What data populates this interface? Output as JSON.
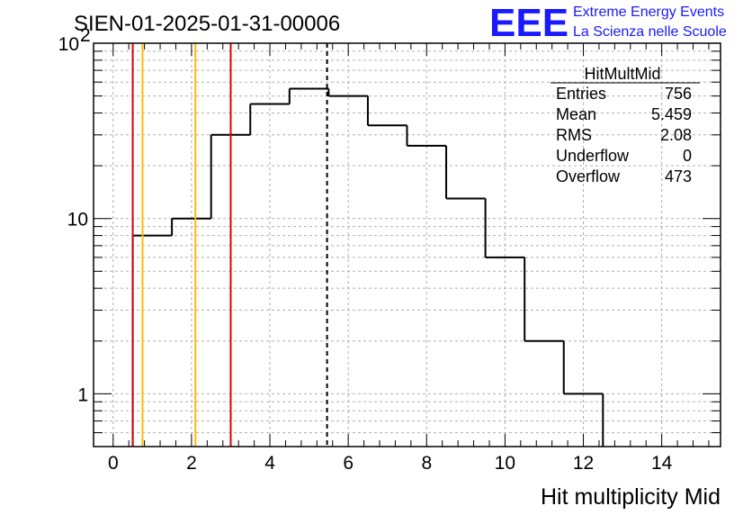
{
  "title": "SIEN-01-2025-01-31-00006",
  "logo": {
    "mark": "EEE",
    "line1": "Extreme Energy Events",
    "line2": "La Scienza nelle Scuole",
    "color": "#1a1aff"
  },
  "stats": {
    "name": "HitMultMid",
    "rows": [
      {
        "label": "Entries",
        "value": "756"
      },
      {
        "label": "Mean",
        "value": "5.459"
      },
      {
        "label": "RMS",
        "value": "2.08"
      },
      {
        "label": "Underflow",
        "value": "0"
      },
      {
        "label": "Overflow",
        "value": "473"
      }
    ]
  },
  "chart_data": {
    "type": "bar",
    "style": "step-histogram",
    "xlabel": "Hit multiplicity Mid",
    "ylabel": "",
    "xlim": [
      -0.5,
      15.5
    ],
    "ylim": [
      0.5,
      100
    ],
    "yscale": "log",
    "grid": true,
    "bin_edges": [
      0.5,
      1.5,
      2.5,
      3.5,
      4.5,
      5.5,
      6.5,
      7.5,
      8.5,
      9.5,
      10.5,
      11.5,
      12.5
    ],
    "values": [
      8,
      10,
      30,
      45,
      55,
      50,
      34,
      26,
      13,
      6,
      2,
      1
    ],
    "x_ticks": [
      0,
      2,
      4,
      6,
      8,
      10,
      12,
      14
    ],
    "y_ticks": [
      {
        "value": 1,
        "label": "1"
      },
      {
        "value": 10,
        "label": "10"
      },
      {
        "value": 100,
        "label": "10",
        "exponent": "2"
      }
    ],
    "vertical_lines": [
      {
        "x": 0.5,
        "color": "#e00000",
        "style": "solid"
      },
      {
        "x": 0.75,
        "color": "#ffbb00",
        "style": "solid"
      },
      {
        "x": 2.1,
        "color": "#ffbb00",
        "style": "solid"
      },
      {
        "x": 3.0,
        "color": "#e00000",
        "style": "solid"
      },
      {
        "x": 5.459,
        "color": "#000000",
        "style": "dashed"
      }
    ]
  }
}
